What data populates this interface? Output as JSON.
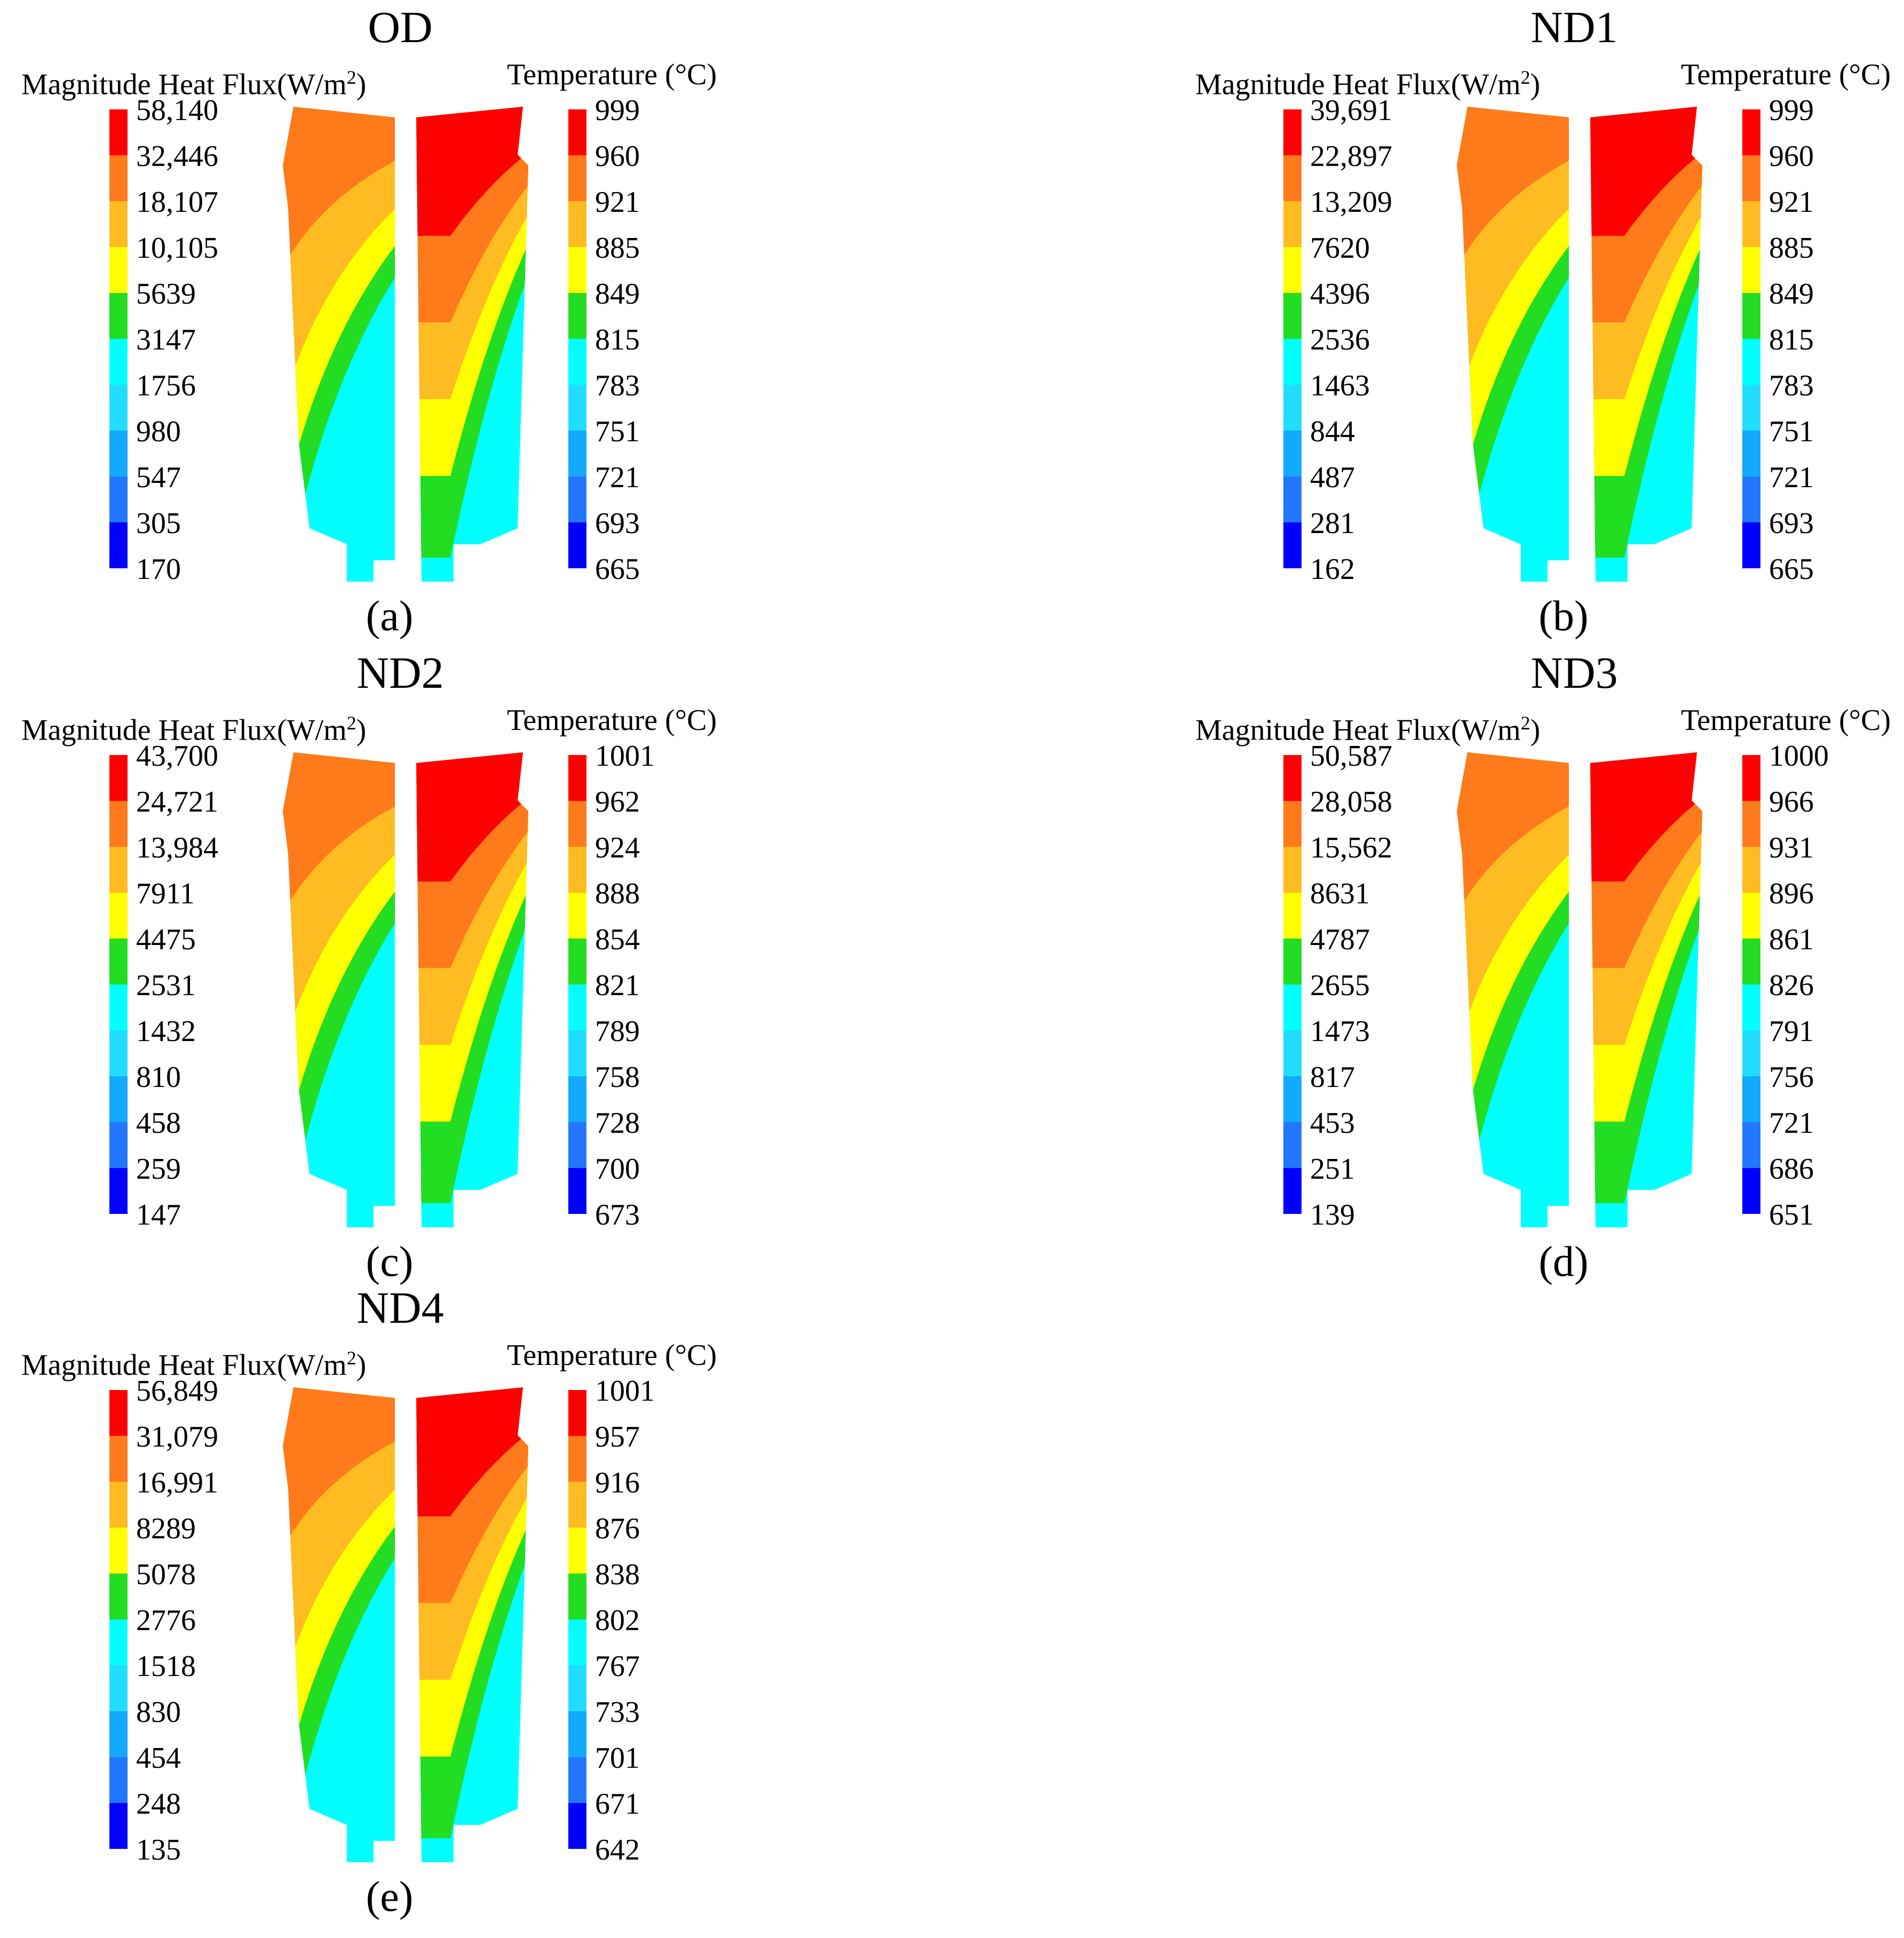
{
  "colors": {
    "scale": [
      "#ff0000",
      "#ff7a1a",
      "#ffbb22",
      "#ffff00",
      "#22dd22",
      "#00ffff",
      "#22ddff",
      "#11aaff",
      "#2277ff",
      "#0000ff"
    ]
  },
  "panels": [
    {
      "title": "OD",
      "caption": "(a)",
      "flux": {
        "label_prefix": "Magnitude Heat Flux(W/m",
        "label_sup": "2",
        "label_suffix": ")",
        "ticks": [
          "58,140",
          "32,446",
          "18,107",
          "10,105",
          "5639",
          "3147",
          "1756",
          "980",
          "547",
          "305",
          "170"
        ]
      },
      "temp": {
        "label": "Temperature (°C)",
        "ticks": [
          "999",
          "960",
          "921",
          "885",
          "849",
          "815",
          "783",
          "751",
          "721",
          "693",
          "665"
        ]
      }
    },
    {
      "title": "ND1",
      "caption": "(b)",
      "flux": {
        "label_prefix": "Magnitude Heat Flux(W/m",
        "label_sup": "2",
        "label_suffix": ")",
        "ticks": [
          "39,691",
          "22,897",
          "13,209",
          "7620",
          "4396",
          "2536",
          "1463",
          "844",
          "487",
          "281",
          "162"
        ]
      },
      "temp": {
        "label": "Temperature (°C)",
        "ticks": [
          "999",
          "960",
          "921",
          "885",
          "849",
          "815",
          "783",
          "751",
          "721",
          "693",
          "665"
        ]
      }
    },
    {
      "title": "ND2",
      "caption": "(c)",
      "flux": {
        "label_prefix": "Magnitude Heat Flux(W/m",
        "label_sup": "2",
        "label_suffix": ")",
        "ticks": [
          "43,700",
          "24,721",
          "13,984",
          "7911",
          "4475",
          "2531",
          "1432",
          "810",
          "458",
          "259",
          "147"
        ]
      },
      "temp": {
        "label": "Temperature (°C)",
        "ticks": [
          "1001",
          "962",
          "924",
          "888",
          "854",
          "821",
          "789",
          "758",
          "728",
          "700",
          "673"
        ]
      }
    },
    {
      "title": "ND3",
      "caption": "(d)",
      "flux": {
        "label_prefix": "Magnitude Heat Flux(W/m",
        "label_sup": "2",
        "label_suffix": ")",
        "ticks": [
          "50,587",
          "28,058",
          "15,562",
          "8631",
          "4787",
          "2655",
          "1473",
          "817",
          "453",
          "251",
          "139"
        ]
      },
      "temp": {
        "label": "Temperature (°C)",
        "ticks": [
          "1000",
          "966",
          "931",
          "896",
          "861",
          "826",
          "791",
          "756",
          "721",
          "686",
          "651"
        ]
      }
    },
    {
      "title": "ND4",
      "caption": "(e)",
      "flux": {
        "label_prefix": "Magnitude Heat Flux(W/m",
        "label_sup": "2",
        "label_suffix": ")",
        "ticks": [
          "56,849",
          "31,079",
          "16,991",
          "8289",
          "5078",
          "2776",
          "1518",
          "830",
          "454",
          "248",
          "135"
        ]
      },
      "temp": {
        "label": "Temperature (°C)",
        "ticks": [
          "1001",
          "957",
          "916",
          "876",
          "838",
          "802",
          "767",
          "733",
          "701",
          "671",
          "642"
        ]
      }
    }
  ]
}
